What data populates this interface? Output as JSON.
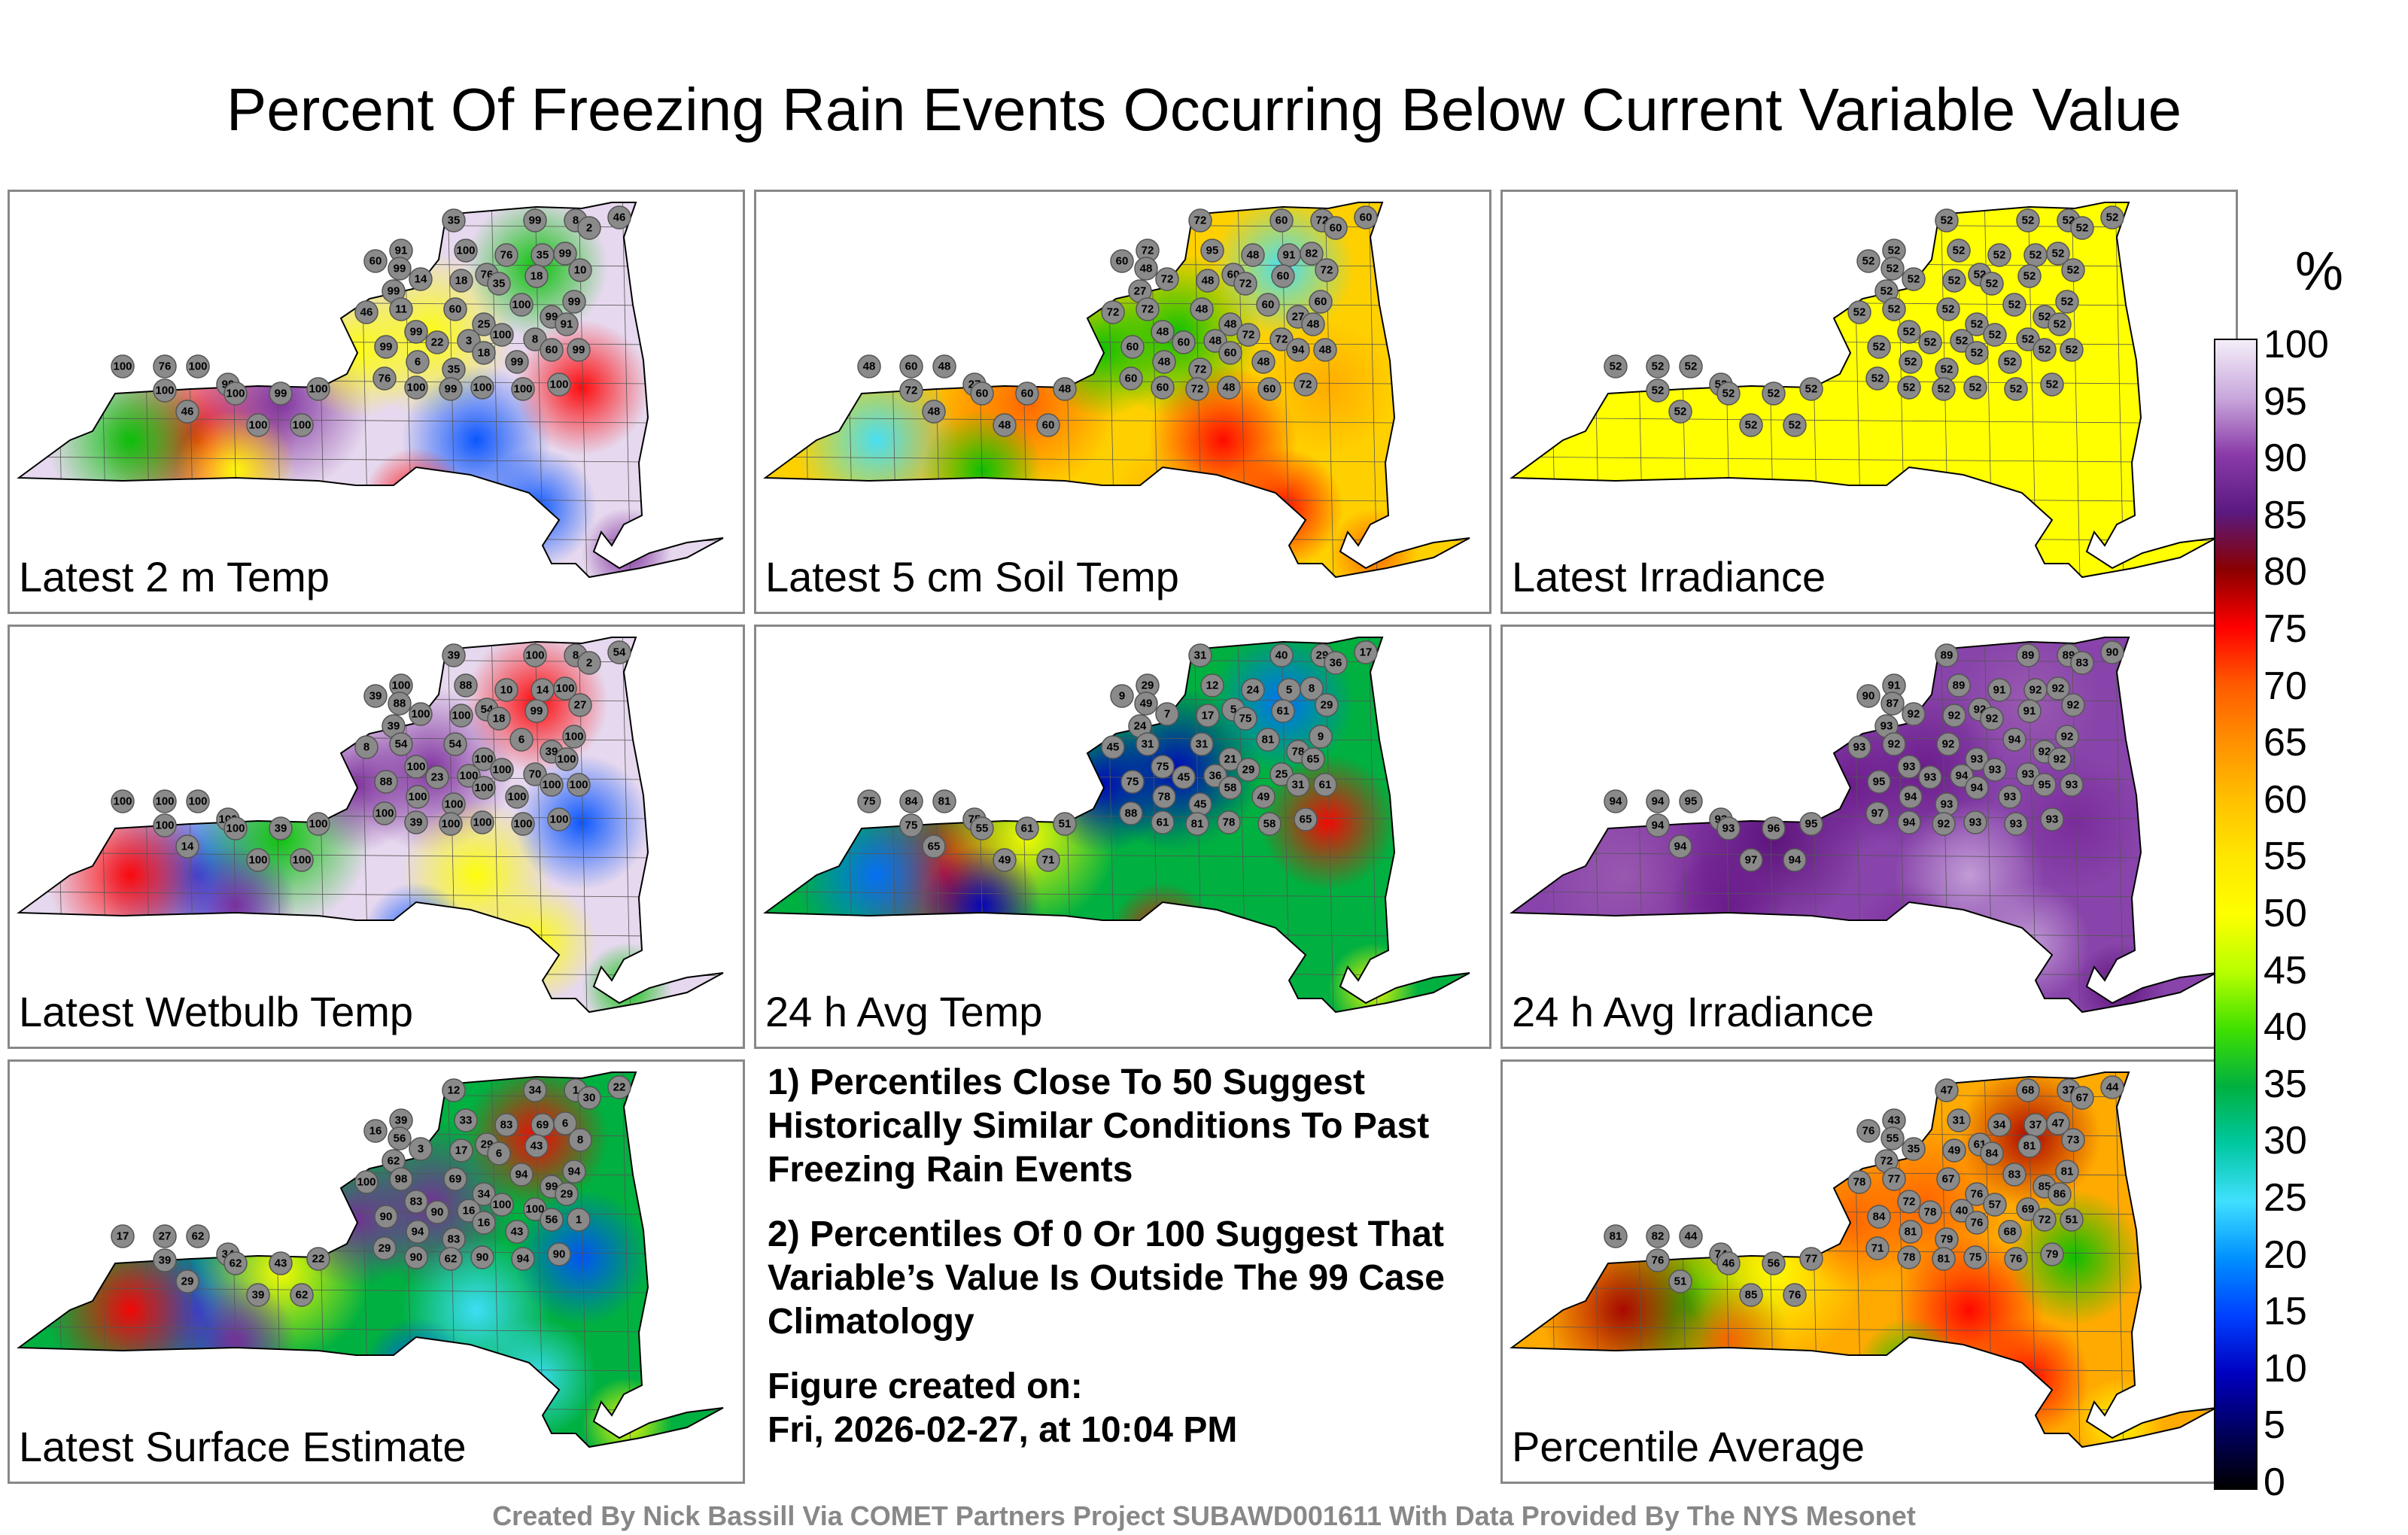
{
  "title": "Percent Of Freezing Rain Events Occurring Below Current Variable Value",
  "colorbar": {
    "unit": "%",
    "ticks": [
      "100",
      "95",
      "90",
      "85",
      "80",
      "75",
      "70",
      "65",
      "60",
      "55",
      "50",
      "45",
      "40",
      "35",
      "30",
      "25",
      "20",
      "15",
      "10",
      "5",
      "0"
    ]
  },
  "panels": [
    {
      "label": "Latest 2 m Temp",
      "base": "#e6d8ee",
      "accent": [
        "#ff0000",
        "#ffff00",
        "#00c000",
        "#0050ff",
        "#7a2a9a"
      ],
      "stations": [
        "35",
        "99",
        "8",
        "46",
        "2",
        "91",
        "100",
        "60",
        "99",
        "76",
        "35",
        "99",
        "76",
        "10",
        "14",
        "99",
        "18",
        "35",
        "18",
        "99",
        "11",
        "46",
        "60",
        "25",
        "100",
        "99",
        "99",
        "22",
        "3",
        "100",
        "8",
        "91",
        "99",
        "6",
        "35",
        "18",
        "99",
        "60",
        "99",
        "76",
        "100",
        "99",
        "100",
        "100",
        "100",
        "100",
        "76",
        "100",
        "99",
        "100",
        "46",
        "100",
        "99",
        "100",
        "100",
        "100"
      ]
    },
    {
      "label": "Latest 5 cm Soil Temp",
      "base": "#ffd000",
      "accent": [
        "#ff6000",
        "#ffaa00",
        "#00c000",
        "#40e0ff",
        "#ff0000"
      ],
      "stations": [
        "72",
        "60",
        "72",
        "60",
        "60",
        "72",
        "95",
        "60",
        "48",
        "48",
        "91",
        "82",
        "60",
        "72",
        "72",
        "27",
        "48",
        "72",
        "60",
        "60",
        "72",
        "72",
        "48",
        "48",
        "60",
        "27",
        "48",
        "60",
        "48",
        "72",
        "72",
        "48",
        "60",
        "48",
        "72",
        "60",
        "48",
        "94",
        "48",
        "60",
        "60",
        "72",
        "48",
        "60",
        "72",
        "48",
        "60",
        "48",
        "27",
        "72",
        "48",
        "60",
        "60",
        "48",
        "48",
        "60"
      ]
    },
    {
      "label": "Latest Irradiance",
      "base": "#ffff00",
      "accent": [
        "#ffff00",
        "#ffff00",
        "#ffff00",
        "#ffff00",
        "#ffff00"
      ],
      "stations": [
        "52",
        "52",
        "52",
        "52",
        "52",
        "52",
        "52",
        "52",
        "52",
        "52",
        "52",
        "52",
        "52",
        "52",
        "52",
        "52",
        "52",
        "52",
        "52",
        "52",
        "52",
        "52",
        "52",
        "52",
        "52",
        "52",
        "52",
        "52",
        "52",
        "52",
        "52",
        "52",
        "52",
        "52",
        "52",
        "52",
        "52",
        "52",
        "52",
        "52",
        "52",
        "52",
        "52",
        "52",
        "52",
        "52",
        "52",
        "52",
        "52",
        "52",
        "52",
        "52",
        "52",
        "52",
        "52",
        "52"
      ]
    },
    {
      "label": "Latest Wetbulb Temp",
      "base": "#e6d8ee",
      "accent": [
        "#ff0000",
        "#ffff00",
        "#00c000",
        "#0050ff",
        "#7a2a9a"
      ],
      "stations": [
        "39",
        "100",
        "8",
        "54",
        "2",
        "100",
        "88",
        "39",
        "88",
        "10",
        "14",
        "100",
        "54",
        "27",
        "100",
        "39",
        "100",
        "18",
        "99",
        "100",
        "54",
        "8",
        "54",
        "100",
        "6",
        "39",
        "100",
        "23",
        "100",
        "100",
        "70",
        "100",
        "88",
        "100",
        "100",
        "100",
        "100",
        "100",
        "100",
        "100",
        "39",
        "100",
        "100",
        "100",
        "100",
        "100",
        "100",
        "100",
        "100",
        "100",
        "14",
        "100",
        "39",
        "100",
        "100",
        "100"
      ]
    },
    {
      "label": "24 h Avg Temp",
      "base": "#00b040",
      "accent": [
        "#0000c0",
        "#0070ff",
        "#00b040",
        "#ffff00",
        "#ff0000"
      ],
      "stations": [
        "31",
        "40",
        "29",
        "17",
        "36",
        "29",
        "12",
        "9",
        "49",
        "24",
        "5",
        "8",
        "5",
        "29",
        "7",
        "24",
        "17",
        "75",
        "61",
        "9",
        "31",
        "45",
        "31",
        "21",
        "81",
        "78",
        "75",
        "45",
        "36",
        "29",
        "25",
        "65",
        "75",
        "78",
        "45",
        "58",
        "49",
        "31",
        "61",
        "88",
        "61",
        "81",
        "78",
        "58",
        "65",
        "75",
        "84",
        "81",
        "75",
        "75",
        "65",
        "55",
        "61",
        "51",
        "49",
        "71"
      ]
    },
    {
      "label": "24 h Avg Irradiance",
      "base": "#8844aa",
      "accent": [
        "#7a2a9a",
        "#6a1a8a",
        "#9a5ab0",
        "#c4a0d8",
        "#5a1078"
      ],
      "stations": [
        "89",
        "89",
        "89",
        "90",
        "83",
        "91",
        "89",
        "90",
        "87",
        "91",
        "92",
        "92",
        "92",
        "92",
        "92",
        "93",
        "92",
        "92",
        "91",
        "92",
        "92",
        "93",
        "92",
        "93",
        "94",
        "92",
        "93",
        "93",
        "94",
        "93",
        "93",
        "92",
        "95",
        "94",
        "93",
        "94",
        "93",
        "95",
        "93",
        "97",
        "94",
        "92",
        "93",
        "93",
        "93",
        "94",
        "94",
        "95",
        "93",
        "94",
        "94",
        "93",
        "96",
        "95",
        "97",
        "94"
      ]
    },
    {
      "label": "Latest Surface Estimate",
      "base": "#00b040",
      "accent": [
        "#ffff00",
        "#0050ff",
        "#7a2a9a",
        "#ff0000",
        "#40e0ff"
      ],
      "stations": [
        "12",
        "34",
        "1",
        "22",
        "30",
        "39",
        "33",
        "16",
        "56",
        "83",
        "69",
        "6",
        "29",
        "8",
        "3",
        "62",
        "17",
        "6",
        "43",
        "94",
        "98",
        "100",
        "69",
        "34",
        "94",
        "99",
        "83",
        "90",
        "16",
        "100",
        "100",
        "29",
        "90",
        "94",
        "83",
        "16",
        "43",
        "56",
        "1",
        "29",
        "90",
        "62",
        "90",
        "94",
        "90",
        "17",
        "27",
        "62",
        "34",
        "39",
        "29",
        "62",
        "43",
        "22",
        "39",
        "62"
      ]
    },
    {
      "label": "Percentile Average",
      "base": "#ffaa00",
      "accent": [
        "#ff0000",
        "#ffff00",
        "#00c000",
        "#ff6000",
        "#aa0000"
      ],
      "stations": [
        "47",
        "68",
        "37",
        "44",
        "67",
        "43",
        "31",
        "76",
        "55",
        "34",
        "37",
        "47",
        "61",
        "73",
        "35",
        "72",
        "49",
        "84",
        "81",
        "81",
        "77",
        "78",
        "67",
        "76",
        "83",
        "85",
        "72",
        "78",
        "40",
        "57",
        "69",
        "86",
        "84",
        "81",
        "79",
        "76",
        "68",
        "72",
        "51",
        "71",
        "78",
        "81",
        "75",
        "76",
        "79",
        "81",
        "82",
        "44",
        "74",
        "76",
        "51",
        "46",
        "56",
        "77",
        "85",
        "76"
      ]
    }
  ],
  "notes": [
    "1) Percentiles Close To 50 Suggest Historically Similar Conditions To Past Freezing Rain Events",
    "2) Percentiles Of 0 Or 100 Suggest That Variable’s Value Is Outside The 99 Case Climatology"
  ],
  "created_label": "Figure created on:",
  "created_date": "Fri, 2026-02-27, at 10:04 PM",
  "footer": "Created By Nick Bassill Via COMET Partners Project SUBAWD001611 With Data Provided By The NYS Mesonet"
}
